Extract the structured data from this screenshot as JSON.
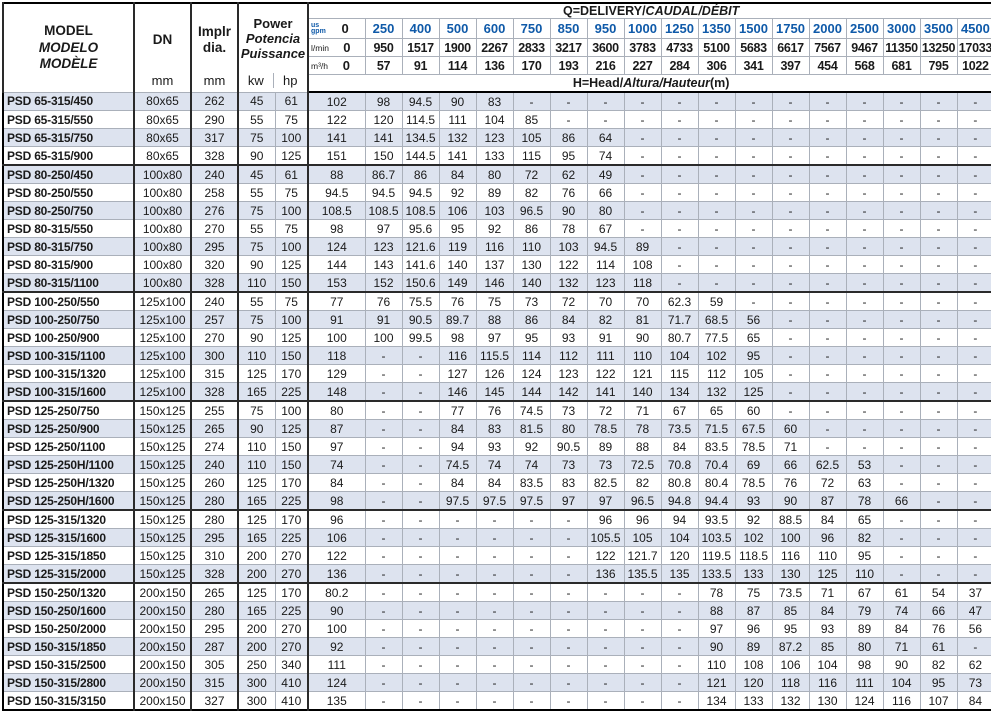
{
  "colors": {
    "accent_blue": "#0f5aa9",
    "row_shade": "#dde3ef"
  },
  "header": {
    "model_lines": [
      "MODEL",
      "MODELO",
      "MODÈLE"
    ],
    "dn_label": "DN",
    "impeller_lines": [
      "Implr",
      "dia."
    ],
    "power_lines": [
      "Power",
      "Potencia",
      "Puissance"
    ],
    "unit_mm": "mm",
    "unit_kw": "kw",
    "unit_hp": "hp",
    "q_title": {
      "a": "Q=DELIVERY/",
      "b": "CAUDAL/DÉBIT"
    },
    "h_title": {
      "a": "H=Head/",
      "b": "Altura/Hauteur",
      "c": "(m)"
    },
    "flow": {
      "gpm_unit_line1": "us",
      "gpm_unit_line2": "gpm",
      "zero": "0",
      "lmin_label": "l/min",
      "m3h_label": "m³/h",
      "gpm": [
        "250",
        "400",
        "500",
        "600",
        "750",
        "850",
        "950",
        "1000",
        "1250",
        "1350",
        "1500",
        "1750",
        "2000",
        "2500",
        "3000",
        "3500",
        "4500"
      ],
      "lmin": [
        "950",
        "1517",
        "1900",
        "2267",
        "2833",
        "3217",
        "3600",
        "3783",
        "4733",
        "5100",
        "5683",
        "6617",
        "7567",
        "9467",
        "11350",
        "13250",
        "17033"
      ],
      "m3h": [
        "57",
        "91",
        "114",
        "136",
        "170",
        "193",
        "216",
        "227",
        "284",
        "306",
        "341",
        "397",
        "454",
        "568",
        "681",
        "795",
        "1022"
      ]
    }
  },
  "rows": [
    {
      "model": "PSD 65-315/450",
      "dn": "80x65",
      "dia": "262",
      "kw": "45",
      "hp": "61",
      "group_end": false,
      "head": [
        "102",
        "98",
        "94.5",
        "90",
        "83",
        "-",
        "-",
        "-",
        "-",
        "-",
        "-",
        "-",
        "-",
        "-",
        "-",
        "-",
        "-",
        "-"
      ]
    },
    {
      "model": "PSD 65-315/550",
      "dn": "80x65",
      "dia": "290",
      "kw": "55",
      "hp": "75",
      "group_end": false,
      "head": [
        "122",
        "120",
        "114.5",
        "111",
        "104",
        "85",
        "-",
        "-",
        "-",
        "-",
        "-",
        "-",
        "-",
        "-",
        "-",
        "-",
        "-",
        "-"
      ]
    },
    {
      "model": "PSD 65-315/750",
      "dn": "80x65",
      "dia": "317",
      "kw": "75",
      "hp": "100",
      "group_end": false,
      "head": [
        "141",
        "141",
        "134.5",
        "132",
        "123",
        "105",
        "86",
        "64",
        "-",
        "-",
        "-",
        "-",
        "-",
        "-",
        "-",
        "-",
        "-",
        "-"
      ]
    },
    {
      "model": "PSD 65-315/900",
      "dn": "80x65",
      "dia": "328",
      "kw": "90",
      "hp": "125",
      "group_end": true,
      "head": [
        "151",
        "150",
        "144.5",
        "141",
        "133",
        "115",
        "95",
        "74",
        "-",
        "-",
        "-",
        "-",
        "-",
        "-",
        "-",
        "-",
        "-",
        "-"
      ]
    },
    {
      "model": "PSD 80-250/450",
      "dn": "100x80",
      "dia": "240",
      "kw": "45",
      "hp": "61",
      "group_end": false,
      "head": [
        "88",
        "86.7",
        "86",
        "84",
        "80",
        "72",
        "62",
        "49",
        "-",
        "-",
        "-",
        "-",
        "-",
        "-",
        "-",
        "-",
        "-",
        "-"
      ]
    },
    {
      "model": "PSD 80-250/550",
      "dn": "100x80",
      "dia": "258",
      "kw": "55",
      "hp": "75",
      "group_end": false,
      "head": [
        "94.5",
        "94.5",
        "94.5",
        "92",
        "89",
        "82",
        "76",
        "66",
        "-",
        "-",
        "-",
        "-",
        "-",
        "-",
        "-",
        "-",
        "-",
        "-"
      ]
    },
    {
      "model": "PSD 80-250/750",
      "dn": "100x80",
      "dia": "276",
      "kw": "75",
      "hp": "100",
      "group_end": false,
      "head": [
        "108.5",
        "108.5",
        "108.5",
        "106",
        "103",
        "96.5",
        "90",
        "80",
        "-",
        "-",
        "-",
        "-",
        "-",
        "-",
        "-",
        "-",
        "-",
        "-"
      ]
    },
    {
      "model": "PSD 80-315/550",
      "dn": "100x80",
      "dia": "270",
      "kw": "55",
      "hp": "75",
      "group_end": false,
      "head": [
        "98",
        "97",
        "95.6",
        "95",
        "92",
        "86",
        "78",
        "67",
        "-",
        "-",
        "-",
        "-",
        "-",
        "-",
        "-",
        "-",
        "-",
        "-"
      ]
    },
    {
      "model": "PSD 80-315/750",
      "dn": "100x80",
      "dia": "295",
      "kw": "75",
      "hp": "100",
      "group_end": false,
      "head": [
        "124",
        "123",
        "121.6",
        "119",
        "116",
        "110",
        "103",
        "94.5",
        "89",
        "-",
        "-",
        "-",
        "-",
        "-",
        "-",
        "-",
        "-",
        "-"
      ]
    },
    {
      "model": "PSD 80-315/900",
      "dn": "100x80",
      "dia": "320",
      "kw": "90",
      "hp": "125",
      "group_end": false,
      "head": [
        "144",
        "143",
        "141.6",
        "140",
        "137",
        "130",
        "122",
        "114",
        "108",
        "-",
        "-",
        "-",
        "-",
        "-",
        "-",
        "-",
        "-",
        "-"
      ]
    },
    {
      "model": "PSD 80-315/1100",
      "dn": "100x80",
      "dia": "328",
      "kw": "110",
      "hp": "150",
      "group_end": true,
      "head": [
        "153",
        "152",
        "150.6",
        "149",
        "146",
        "140",
        "132",
        "123",
        "118",
        "-",
        "-",
        "-",
        "-",
        "-",
        "-",
        "-",
        "-",
        "-"
      ]
    },
    {
      "model": "PSD 100-250/550",
      "dn": "125x100",
      "dia": "240",
      "kw": "55",
      "hp": "75",
      "group_end": false,
      "head": [
        "77",
        "76",
        "75.5",
        "76",
        "75",
        "73",
        "72",
        "70",
        "70",
        "62.3",
        "59",
        "-",
        "-",
        "-",
        "-",
        "-",
        "-",
        "-"
      ]
    },
    {
      "model": "PSD 100-250/750",
      "dn": "125x100",
      "dia": "257",
      "kw": "75",
      "hp": "100",
      "group_end": false,
      "head": [
        "91",
        "91",
        "90.5",
        "89.7",
        "88",
        "86",
        "84",
        "82",
        "81",
        "71.7",
        "68.5",
        "56",
        "-",
        "-",
        "-",
        "-",
        "-",
        "-"
      ]
    },
    {
      "model": "PSD 100-250/900",
      "dn": "125x100",
      "dia": "270",
      "kw": "90",
      "hp": "125",
      "group_end": false,
      "head": [
        "100",
        "100",
        "99.5",
        "98",
        "97",
        "95",
        "93",
        "91",
        "90",
        "80.7",
        "77.5",
        "65",
        "-",
        "-",
        "-",
        "-",
        "-",
        "-"
      ]
    },
    {
      "model": "PSD 100-315/1100",
      "dn": "125x100",
      "dia": "300",
      "kw": "110",
      "hp": "150",
      "group_end": false,
      "head": [
        "118",
        "-",
        "-",
        "116",
        "115.5",
        "114",
        "112",
        "111",
        "110",
        "104",
        "102",
        "95",
        "-",
        "-",
        "-",
        "-",
        "-",
        "-"
      ]
    },
    {
      "model": "PSD 100-315/1320",
      "dn": "125x100",
      "dia": "315",
      "kw": "125",
      "hp": "170",
      "group_end": false,
      "head": [
        "129",
        "-",
        "-",
        "127",
        "126",
        "124",
        "123",
        "122",
        "121",
        "115",
        "112",
        "105",
        "-",
        "-",
        "-",
        "-",
        "-",
        "-"
      ]
    },
    {
      "model": "PSD 100-315/1600",
      "dn": "125x100",
      "dia": "328",
      "kw": "165",
      "hp": "225",
      "group_end": true,
      "head": [
        "148",
        "-",
        "-",
        "146",
        "145",
        "144",
        "142",
        "141",
        "140",
        "134",
        "132",
        "125",
        "-",
        "-",
        "-",
        "-",
        "-",
        "-"
      ]
    },
    {
      "model": "PSD 125-250/750",
      "dn": "150x125",
      "dia": "255",
      "kw": "75",
      "hp": "100",
      "group_end": false,
      "head": [
        "80",
        "-",
        "-",
        "77",
        "76",
        "74.5",
        "73",
        "72",
        "71",
        "67",
        "65",
        "60",
        "-",
        "-",
        "-",
        "-",
        "-",
        "-"
      ]
    },
    {
      "model": "PSD 125-250/900",
      "dn": "150x125",
      "dia": "265",
      "kw": "90",
      "hp": "125",
      "group_end": false,
      "head": [
        "87",
        "-",
        "-",
        "84",
        "83",
        "81.5",
        "80",
        "78.5",
        "78",
        "73.5",
        "71.5",
        "67.5",
        "60",
        "-",
        "-",
        "-",
        "-",
        "-"
      ]
    },
    {
      "model": "PSD 125-250/1100",
      "dn": "150x125",
      "dia": "274",
      "kw": "110",
      "hp": "150",
      "group_end": false,
      "head": [
        "97",
        "-",
        "-",
        "94",
        "93",
        "92",
        "90.5",
        "89",
        "88",
        "84",
        "83.5",
        "78.5",
        "71",
        "-",
        "-",
        "-",
        "-",
        "-"
      ]
    },
    {
      "model": "PSD 125-250H/1100",
      "dn": "150x125",
      "dia": "240",
      "kw": "110",
      "hp": "150",
      "group_end": false,
      "head": [
        "74",
        "-",
        "-",
        "74.5",
        "74",
        "74",
        "73",
        "73",
        "72.5",
        "70.8",
        "70.4",
        "69",
        "66",
        "62.5",
        "53",
        "-",
        "-",
        "-"
      ]
    },
    {
      "model": "PSD 125-250H/1320",
      "dn": "150x125",
      "dia": "260",
      "kw": "125",
      "hp": "170",
      "group_end": false,
      "head": [
        "84",
        "-",
        "-",
        "84",
        "84",
        "83.5",
        "83",
        "82.5",
        "82",
        "80.8",
        "80.4",
        "78.5",
        "76",
        "72",
        "63",
        "-",
        "-",
        "-"
      ]
    },
    {
      "model": "PSD 125-250H/1600",
      "dn": "150x125",
      "dia": "280",
      "kw": "165",
      "hp": "225",
      "group_end": true,
      "head": [
        "98",
        "-",
        "-",
        "97.5",
        "97.5",
        "97.5",
        "97",
        "97",
        "96.5",
        "94.8",
        "94.4",
        "93",
        "90",
        "87",
        "78",
        "66",
        "-",
        "-"
      ]
    },
    {
      "model": "PSD 125-315/1320",
      "dn": "150x125",
      "dia": "280",
      "kw": "125",
      "hp": "170",
      "group_end": false,
      "head": [
        "96",
        "-",
        "-",
        "-",
        "-",
        "-",
        "-",
        "96",
        "96",
        "94",
        "93.5",
        "92",
        "88.5",
        "84",
        "65",
        "-",
        "-",
        "-"
      ]
    },
    {
      "model": "PSD 125-315/1600",
      "dn": "150x125",
      "dia": "295",
      "kw": "165",
      "hp": "225",
      "group_end": false,
      "head": [
        "106",
        "-",
        "-",
        "-",
        "-",
        "-",
        "-",
        "105.5",
        "105",
        "104",
        "103.5",
        "102",
        "100",
        "96",
        "82",
        "-",
        "-",
        "-"
      ]
    },
    {
      "model": "PSD 125-315/1850",
      "dn": "150x125",
      "dia": "310",
      "kw": "200",
      "hp": "270",
      "group_end": false,
      "head": [
        "122",
        "-",
        "-",
        "-",
        "-",
        "-",
        "-",
        "122",
        "121.7",
        "120",
        "119.5",
        "118.5",
        "116",
        "110",
        "95",
        "-",
        "-",
        "-"
      ]
    },
    {
      "model": "PSD 125-315/2000",
      "dn": "150x125",
      "dia": "328",
      "kw": "200",
      "hp": "270",
      "group_end": true,
      "head": [
        "136",
        "-",
        "-",
        "-",
        "-",
        "-",
        "-",
        "136",
        "135.5",
        "135",
        "133.5",
        "133",
        "130",
        "125",
        "110",
        "-",
        "-",
        "-"
      ]
    },
    {
      "model": "PSD 150-250/1320",
      "dn": "200x150",
      "dia": "265",
      "kw": "125",
      "hp": "170",
      "group_end": false,
      "head": [
        "80.2",
        "-",
        "-",
        "-",
        "-",
        "-",
        "-",
        "-",
        "-",
        "-",
        "78",
        "75",
        "73.5",
        "71",
        "67",
        "61",
        "54",
        "37"
      ]
    },
    {
      "model": "PSD 150-250/1600",
      "dn": "200x150",
      "dia": "280",
      "kw": "165",
      "hp": "225",
      "group_end": false,
      "head": [
        "90",
        "-",
        "-",
        "-",
        "-",
        "-",
        "-",
        "-",
        "-",
        "-",
        "88",
        "87",
        "85",
        "84",
        "79",
        "74",
        "66",
        "47"
      ]
    },
    {
      "model": "PSD 150-250/2000",
      "dn": "200x150",
      "dia": "295",
      "kw": "200",
      "hp": "270",
      "group_end": false,
      "head": [
        "100",
        "-",
        "-",
        "-",
        "-",
        "-",
        "-",
        "-",
        "-",
        "-",
        "97",
        "96",
        "95",
        "93",
        "89",
        "84",
        "76",
        "56"
      ]
    },
    {
      "model": "PSD 150-315/1850",
      "dn": "200x150",
      "dia": "287",
      "kw": "200",
      "hp": "270",
      "group_end": false,
      "head": [
        "92",
        "-",
        "-",
        "-",
        "-",
        "-",
        "-",
        "-",
        "-",
        "-",
        "90",
        "89",
        "87.2",
        "85",
        "80",
        "71",
        "61",
        "-"
      ]
    },
    {
      "model": "PSD 150-315/2500",
      "dn": "200x150",
      "dia": "305",
      "kw": "250",
      "hp": "340",
      "group_end": false,
      "head": [
        "111",
        "-",
        "-",
        "-",
        "-",
        "-",
        "-",
        "-",
        "-",
        "-",
        "110",
        "108",
        "106",
        "104",
        "98",
        "90",
        "82",
        "62"
      ]
    },
    {
      "model": "PSD 150-315/2800",
      "dn": "200x150",
      "dia": "315",
      "kw": "300",
      "hp": "410",
      "group_end": false,
      "head": [
        "124",
        "-",
        "-",
        "-",
        "-",
        "-",
        "-",
        "-",
        "-",
        "-",
        "121",
        "120",
        "118",
        "116",
        "111",
        "104",
        "95",
        "73"
      ]
    },
    {
      "model": "PSD 150-315/3150",
      "dn": "200x150",
      "dia": "327",
      "kw": "300",
      "hp": "410",
      "group_end": false,
      "head": [
        "135",
        "-",
        "-",
        "-",
        "-",
        "-",
        "-",
        "-",
        "-",
        "-",
        "134",
        "133",
        "132",
        "130",
        "124",
        "116",
        "107",
        "84"
      ]
    }
  ]
}
